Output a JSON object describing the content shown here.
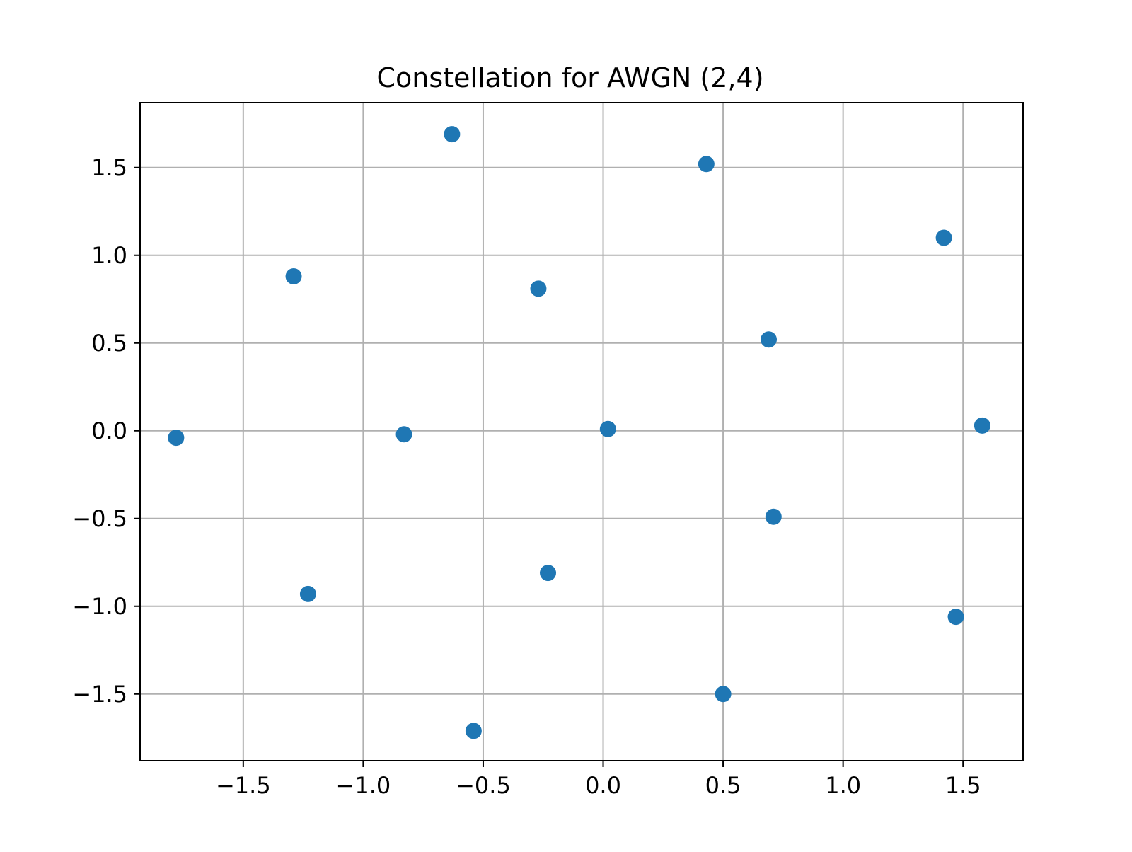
{
  "chart_data": {
    "type": "scatter",
    "title": "Constellation for AWGN (2,4)",
    "xlabel": "",
    "ylabel": "",
    "xlim": [
      -1.93,
      1.75
    ],
    "ylim": [
      -1.88,
      1.87
    ],
    "xticks": [
      -1.5,
      -1.0,
      -0.5,
      0.0,
      0.5,
      1.0,
      1.5
    ],
    "xtick_labels": [
      "−1.5",
      "−1.0",
      "−0.5",
      "0.0",
      "0.5",
      "1.0",
      "1.5"
    ],
    "yticks": [
      -1.5,
      -1.0,
      -0.5,
      0.0,
      0.5,
      1.0,
      1.5
    ],
    "ytick_labels": [
      "−1.5",
      "−1.0",
      "−0.5",
      "0.0",
      "0.5",
      "1.0",
      "1.5"
    ],
    "grid": true,
    "marker_color": "#1f77b4",
    "grid_color": "#b0b0b0",
    "points": [
      {
        "x": -1.78,
        "y": -0.04
      },
      {
        "x": -1.29,
        "y": 0.88
      },
      {
        "x": -1.23,
        "y": -0.93
      },
      {
        "x": -0.83,
        "y": -0.02
      },
      {
        "x": -0.63,
        "y": 1.69
      },
      {
        "x": -0.54,
        "y": -1.71
      },
      {
        "x": -0.27,
        "y": 0.81
      },
      {
        "x": -0.23,
        "y": -0.81
      },
      {
        "x": 0.02,
        "y": 0.01
      },
      {
        "x": 0.43,
        "y": 1.52
      },
      {
        "x": 0.5,
        "y": -1.5
      },
      {
        "x": 0.69,
        "y": 0.52
      },
      {
        "x": 0.71,
        "y": -0.49
      },
      {
        "x": 1.42,
        "y": 1.1
      },
      {
        "x": 1.47,
        "y": -1.06
      },
      {
        "x": 1.58,
        "y": 0.03
      }
    ]
  }
}
